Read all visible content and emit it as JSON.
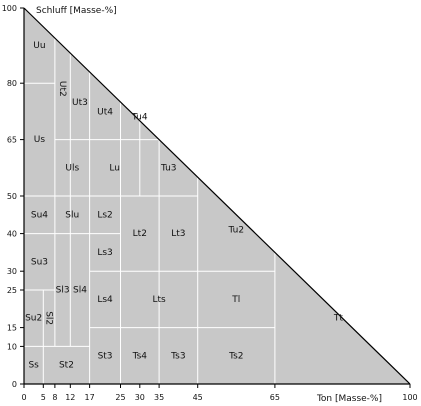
{
  "chart_data": {
    "type": "ternary-triangle-diagram",
    "y_axis_title": "Schluff [Masse-%]",
    "x_axis_title": "Ton [Masse-%]",
    "y_ticks": [
      0,
      10,
      15,
      25,
      30,
      40,
      50,
      65,
      80,
      100
    ],
    "x_ticks": [
      0,
      5,
      8,
      12,
      17,
      25,
      30,
      35,
      45,
      65,
      100
    ],
    "fill_color": "#c8c8c8",
    "line_color": "#ffffff",
    "outline_color": "#000000",
    "classes": [
      {
        "code": "Uu",
        "ton_range": [
          0,
          8
        ],
        "schluff_range": [
          80,
          100
        ]
      },
      {
        "code": "Ut2",
        "ton_range": [
          8,
          12
        ],
        "schluff_range": [
          65,
          92
        ]
      },
      {
        "code": "Ut3",
        "ton_range": [
          12,
          17
        ],
        "schluff_range": [
          65,
          88
        ]
      },
      {
        "code": "Ut4",
        "ton_range": [
          17,
          25
        ],
        "schluff_range": [
          65,
          83
        ]
      },
      {
        "code": "Tu4",
        "ton_range": [
          25,
          35
        ],
        "schluff_range": [
          65,
          75
        ]
      },
      {
        "code": "Us",
        "ton_range": [
          0,
          8
        ],
        "schluff_range": [
          50,
          80
        ]
      },
      {
        "code": "Uls",
        "ton_range": [
          8,
          17
        ],
        "schluff_range": [
          50,
          65
        ]
      },
      {
        "code": "Lu",
        "ton_range": [
          17,
          30
        ],
        "schluff_range": [
          50,
          65
        ]
      },
      {
        "code": "Tu3",
        "ton_range": [
          30,
          45
        ],
        "schluff_range": [
          50,
          65
        ]
      },
      {
        "code": "Su4",
        "ton_range": [
          0,
          8
        ],
        "schluff_range": [
          40,
          50
        ]
      },
      {
        "code": "Slu",
        "ton_range": [
          8,
          17
        ],
        "schluff_range": [
          40,
          50
        ]
      },
      {
        "code": "Ls2",
        "ton_range": [
          17,
          25
        ],
        "schluff_range": [
          40,
          50
        ]
      },
      {
        "code": "Ls3",
        "ton_range": [
          17,
          25
        ],
        "schluff_range": [
          30,
          40
        ]
      },
      {
        "code": "Lt2",
        "ton_range": [
          25,
          35
        ],
        "schluff_range": [
          30,
          50
        ]
      },
      {
        "code": "Lt3",
        "ton_range": [
          35,
          45
        ],
        "schluff_range": [
          30,
          50
        ]
      },
      {
        "code": "Tu2",
        "ton_range": [
          45,
          65
        ],
        "schluff_range": [
          30,
          55
        ]
      },
      {
        "code": "Su3",
        "ton_range": [
          0,
          8
        ],
        "schluff_range": [
          25,
          40
        ]
      },
      {
        "code": "Sl3",
        "ton_range": [
          8,
          12
        ],
        "schluff_range": [
          10,
          40
        ]
      },
      {
        "code": "Sl4",
        "ton_range": [
          12,
          17
        ],
        "schluff_range": [
          10,
          40
        ]
      },
      {
        "code": "Ls4",
        "ton_range": [
          17,
          25
        ],
        "schluff_range": [
          15,
          30
        ]
      },
      {
        "code": "Lts",
        "ton_range": [
          25,
          45
        ],
        "schluff_range": [
          15,
          30
        ]
      },
      {
        "code": "Tl",
        "ton_range": [
          45,
          65
        ],
        "schluff_range": [
          15,
          30
        ]
      },
      {
        "code": "Su2",
        "ton_range": [
          0,
          5
        ],
        "schluff_range": [
          10,
          25
        ]
      },
      {
        "code": "Sl2",
        "ton_range": [
          5,
          8
        ],
        "schluff_range": [
          10,
          25
        ]
      },
      {
        "code": "Ss",
        "ton_range": [
          0,
          5
        ],
        "schluff_range": [
          0,
          10
        ]
      },
      {
        "code": "St2",
        "ton_range": [
          5,
          17
        ],
        "schluff_range": [
          0,
          10
        ]
      },
      {
        "code": "St3",
        "ton_range": [
          17,
          25
        ],
        "schluff_range": [
          0,
          15
        ]
      },
      {
        "code": "Ts4",
        "ton_range": [
          25,
          35
        ],
        "schluff_range": [
          0,
          15
        ]
      },
      {
        "code": "Ts3",
        "ton_range": [
          35,
          45
        ],
        "schluff_range": [
          0,
          15
        ]
      },
      {
        "code": "Ts2",
        "ton_range": [
          45,
          65
        ],
        "schluff_range": [
          0,
          15
        ]
      },
      {
        "code": "Tt",
        "ton_range": [
          65,
          100
        ],
        "schluff_range": [
          0,
          35
        ]
      }
    ],
    "vertical_boundaries": [
      {
        "ton": 5,
        "schluff_range": [
          0,
          25
        ]
      },
      {
        "ton": 8,
        "schluff_range": [
          10,
          92
        ]
      },
      {
        "ton": 12,
        "schluff_range": [
          10,
          88
        ]
      },
      {
        "ton": 17,
        "schluff_range": [
          0,
          83
        ]
      },
      {
        "ton": 25,
        "schluff_range": [
          0,
          75
        ]
      },
      {
        "ton": 30,
        "schluff_range": [
          50,
          70
        ]
      },
      {
        "ton": 35,
        "schluff_range": [
          0,
          65
        ]
      },
      {
        "ton": 45,
        "schluff_range": [
          0,
          55
        ]
      },
      {
        "ton": 65,
        "schluff_range": [
          0,
          35
        ]
      }
    ],
    "horizontal_boundaries": [
      {
        "schluff": 10,
        "ton_range": [
          0,
          17
        ]
      },
      {
        "schluff": 15,
        "ton_range": [
          17,
          65
        ]
      },
      {
        "schluff": 25,
        "ton_range": [
          0,
          8
        ]
      },
      {
        "schluff": 30,
        "ton_range": [
          17,
          65
        ]
      },
      {
        "schluff": 40,
        "ton_range": [
          0,
          25
        ]
      },
      {
        "schluff": 50,
        "ton_range": [
          0,
          45
        ]
      },
      {
        "schluff": 65,
        "ton_range": [
          8,
          35
        ]
      },
      {
        "schluff": 80,
        "ton_range": [
          0,
          8
        ]
      }
    ]
  }
}
